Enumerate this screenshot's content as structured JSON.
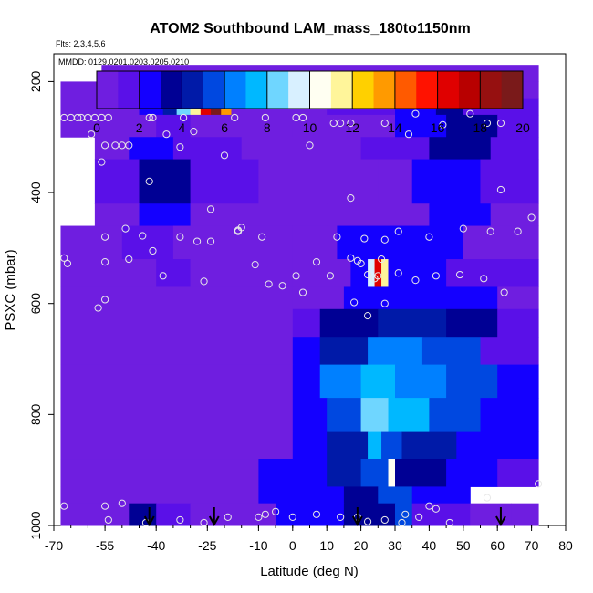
{
  "chart_data": {
    "type": "heatmap",
    "title": "ATOM2 Southbound LAM_mass_180to1150nm",
    "flights_note": "Flts: 2,3,4,5,6",
    "dates_note": "MMDD: 0129,0201,0203,0205,0210",
    "xlabel": "Latitude (deg N)",
    "ylabel": "PSXC (mbar)",
    "xlim": [
      -70,
      80
    ],
    "ylim": [
      1000,
      150
    ],
    "x_ticks": [
      "-70",
      "-55",
      "-40",
      "-25",
      "-10",
      "0",
      "10",
      "20",
      "30",
      "40",
      "50",
      "60",
      "70",
      "80"
    ],
    "y_ticks": [
      "200",
      "400",
      "600",
      "800",
      "1000"
    ],
    "colorbar": {
      "range": [
        0,
        20
      ],
      "ticks": [
        "0",
        "2",
        "4",
        "6",
        "8",
        "10",
        "12",
        "14",
        "16",
        "18",
        "20"
      ],
      "colors": [
        "#6f1ee0",
        "#5a10e8",
        "#1400ff",
        "#000094",
        "#001aa8",
        "#0048e0",
        "#0080ff",
        "#00b8ff",
        "#6fd6ff",
        "#d8f0ff",
        "#fffff2",
        "#fff59a",
        "#ffd000",
        "#ff9a00",
        "#ff5a00",
        "#ff1200",
        "#e00000",
        "#b80000",
        "#961010",
        "#7a1a1a"
      ]
    },
    "rows": [
      {
        "p": [
          170,
          200
        ],
        "lat": [
          -56,
          72
        ],
        "cells": [
          [
            -56,
            72,
            0.3
          ]
        ]
      },
      {
        "p": [
          200,
          230
        ],
        "lat": [
          -68,
          72
        ],
        "cells": [
          [
            -68,
            -20,
            0.3
          ],
          [
            -20,
            10,
            0.6
          ],
          [
            10,
            35,
            0.8
          ],
          [
            35,
            50,
            1.2
          ],
          [
            50,
            72,
            0.5
          ]
        ]
      },
      {
        "p": [
          230,
          260
        ],
        "lat": [
          -68,
          72
        ],
        "cells": [
          [
            -68,
            -45,
            0.3
          ],
          [
            -45,
            -38,
            2.5
          ],
          [
            -38,
            -34,
            4.5
          ],
          [
            -34,
            -30,
            8
          ],
          [
            -30,
            -27,
            11
          ],
          [
            -27,
            -24,
            16
          ],
          [
            -24,
            -21,
            19
          ],
          [
            -21,
            -18,
            13
          ],
          [
            -18,
            10,
            0.4
          ],
          [
            10,
            30,
            1
          ],
          [
            30,
            42,
            2
          ],
          [
            42,
            50,
            3.2
          ],
          [
            50,
            72,
            1.2
          ]
        ]
      },
      {
        "p": [
          260,
          300
        ],
        "lat": [
          -68,
          72
        ],
        "cells": [
          [
            -68,
            -40,
            0.3
          ],
          [
            -40,
            -30,
            1.6
          ],
          [
            -30,
            0,
            0.5
          ],
          [
            0,
            30,
            0.6
          ],
          [
            30,
            45,
            2.4
          ],
          [
            45,
            60,
            3
          ],
          [
            60,
            72,
            1
          ]
        ]
      },
      {
        "p": [
          300,
          340
        ],
        "lat": [
          -58,
          72
        ],
        "cells": [
          [
            -58,
            -48,
            0.4
          ],
          [
            -48,
            -35,
            2.2
          ],
          [
            -35,
            -15,
            1.2
          ],
          [
            -15,
            20,
            0.5
          ],
          [
            20,
            40,
            1.2
          ],
          [
            40,
            58,
            3
          ],
          [
            58,
            72,
            1
          ]
        ]
      },
      {
        "p": [
          340,
          420
        ],
        "lat": [
          -58,
          72
        ],
        "cells": [
          [
            -58,
            -45,
            1
          ],
          [
            -45,
            -30,
            3
          ],
          [
            -30,
            -10,
            1.2
          ],
          [
            -10,
            25,
            0.3
          ],
          [
            25,
            35,
            0.9
          ],
          [
            35,
            55,
            2.9
          ],
          [
            55,
            72,
            1.3
          ]
        ]
      },
      {
        "p": [
          420,
          460
        ],
        "lat": [
          -58,
          72
        ],
        "cells": [
          [
            -58,
            -45,
            0.5
          ],
          [
            -45,
            -30,
            2
          ],
          [
            -30,
            10,
            0.4
          ],
          [
            10,
            40,
            0.4
          ],
          [
            40,
            58,
            2.4
          ],
          [
            58,
            72,
            0.8
          ]
        ]
      },
      {
        "p": [
          460,
          520
        ],
        "lat": [
          -68,
          72
        ],
        "cells": [
          [
            -68,
            -50,
            0.3
          ],
          [
            -50,
            -35,
            1
          ],
          [
            -35,
            0,
            0.3
          ],
          [
            0,
            13,
            0.3
          ],
          [
            13,
            35,
            2.9
          ],
          [
            35,
            50,
            2.5
          ],
          [
            50,
            72,
            0.4
          ]
        ]
      },
      {
        "p": [
          520,
          570
        ],
        "lat": [
          -68,
          72
        ],
        "cells": [
          [
            -68,
            -40,
            0.3
          ],
          [
            -40,
            -30,
            1.5
          ],
          [
            -30,
            0,
            0.4
          ],
          [
            0,
            17,
            0.4
          ],
          [
            17,
            22,
            2.5
          ],
          [
            22,
            24,
            9
          ],
          [
            24,
            26,
            16
          ],
          [
            26,
            28,
            11
          ],
          [
            28,
            30,
            2
          ],
          [
            30,
            45,
            2.8
          ],
          [
            45,
            72,
            1.2
          ]
        ]
      },
      {
        "p": [
          570,
          610
        ],
        "lat": [
          -68,
          72
        ],
        "cells": [
          [
            -68,
            0,
            0.5
          ],
          [
            0,
            15,
            0.6
          ],
          [
            15,
            25,
            2.8
          ],
          [
            25,
            60,
            2
          ],
          [
            60,
            72,
            0.6
          ]
        ]
      },
      {
        "p": [
          610,
          660
        ],
        "lat": [
          -68,
          72
        ],
        "cells": [
          [
            -68,
            0,
            0.6
          ],
          [
            0,
            8,
            1.6
          ],
          [
            8,
            25,
            3.3
          ],
          [
            25,
            45,
            4.4
          ],
          [
            45,
            60,
            3.2
          ],
          [
            60,
            72,
            1.2
          ]
        ]
      },
      {
        "p": [
          660,
          710
        ],
        "lat": [
          -68,
          72
        ],
        "cells": [
          [
            -68,
            0,
            0.7
          ],
          [
            0,
            8,
            2.1
          ],
          [
            8,
            22,
            4.7
          ],
          [
            22,
            38,
            6.2
          ],
          [
            38,
            55,
            5
          ],
          [
            55,
            72,
            1.6
          ]
        ]
      },
      {
        "p": [
          710,
          770
        ],
        "lat": [
          -68,
          72
        ],
        "cells": [
          [
            -68,
            0,
            0.8
          ],
          [
            0,
            8,
            2.8
          ],
          [
            8,
            20,
            6.2
          ],
          [
            20,
            30,
            7.6
          ],
          [
            30,
            45,
            6.6
          ],
          [
            45,
            60,
            5
          ],
          [
            60,
            72,
            2.1
          ]
        ]
      },
      {
        "p": [
          770,
          830
        ],
        "lat": [
          -68,
          72
        ],
        "cells": [
          [
            -68,
            0,
            0.7
          ],
          [
            0,
            10,
            2.8
          ],
          [
            10,
            20,
            5.2
          ],
          [
            20,
            28,
            8.2
          ],
          [
            28,
            40,
            7
          ],
          [
            40,
            55,
            5
          ],
          [
            55,
            72,
            2.3
          ]
        ]
      },
      {
        "p": [
          830,
          880
        ],
        "lat": [
          -68,
          72
        ],
        "cells": [
          [
            -68,
            0,
            0.7
          ],
          [
            0,
            10,
            2.5
          ],
          [
            10,
            22,
            4.8
          ],
          [
            22,
            26,
            7
          ],
          [
            26,
            32,
            5
          ],
          [
            32,
            48,
            4
          ],
          [
            48,
            72,
            2
          ]
        ]
      },
      {
        "p": [
          880,
          930
        ],
        "lat": [
          -68,
          72
        ],
        "cells": [
          [
            -68,
            -10,
            0.7
          ],
          [
            -10,
            10,
            2
          ],
          [
            10,
            20,
            4
          ],
          [
            20,
            28,
            5.5
          ],
          [
            28,
            30,
            10
          ],
          [
            30,
            45,
            3
          ],
          [
            45,
            60,
            2
          ],
          [
            60,
            72,
            1
          ]
        ]
      },
      {
        "p": [
          930,
          960
        ],
        "lat": [
          -68,
          52
        ],
        "cells": [
          [
            -68,
            -10,
            0.6
          ],
          [
            -10,
            15,
            2
          ],
          [
            15,
            25,
            3.5
          ],
          [
            25,
            35,
            5
          ],
          [
            35,
            52,
            2.4
          ]
        ]
      },
      {
        "p": [
          960,
          1000
        ],
        "lat": [
          -68,
          72
        ],
        "cells": [
          [
            -68,
            -48,
            0.5
          ],
          [
            -48,
            -40,
            3
          ],
          [
            -40,
            -30,
            1.5
          ],
          [
            -30,
            -5,
            0.6
          ],
          [
            -5,
            15,
            2.6
          ],
          [
            15,
            30,
            3
          ],
          [
            30,
            35,
            5
          ],
          [
            35,
            52,
            1.2
          ],
          [
            52,
            64,
            0
          ],
          [
            64,
            72,
            0.5
          ]
        ]
      }
    ],
    "samples": [
      [
        -55,
        205
      ],
      [
        -52,
        205
      ],
      [
        -50,
        210
      ],
      [
        -54,
        235
      ],
      [
        -49,
        235
      ],
      [
        -20,
        233
      ],
      [
        -19,
        228
      ],
      [
        -17,
        227
      ],
      [
        -16,
        227
      ],
      [
        63,
        206
      ],
      [
        65,
        206
      ],
      [
        -67,
        265
      ],
      [
        -65,
        265
      ],
      [
        -63,
        265
      ],
      [
        -62,
        265
      ],
      [
        -60,
        265
      ],
      [
        -58,
        265
      ],
      [
        -56,
        265
      ],
      [
        -54,
        265
      ],
      [
        -42,
        265
      ],
      [
        -41,
        265
      ],
      [
        -32,
        265
      ],
      [
        -29,
        290
      ],
      [
        -17,
        265
      ],
      [
        -8,
        265
      ],
      [
        1,
        265
      ],
      [
        3,
        265
      ],
      [
        12,
        275
      ],
      [
        14,
        275
      ],
      [
        17,
        275
      ],
      [
        27,
        275
      ],
      [
        36,
        258
      ],
      [
        44,
        278
      ],
      [
        52,
        258
      ],
      [
        57,
        275
      ],
      [
        61,
        275
      ],
      [
        -59,
        295
      ],
      [
        -55,
        315
      ],
      [
        -52,
        315
      ],
      [
        -50,
        315
      ],
      [
        -48,
        315
      ],
      [
        -37,
        295
      ],
      [
        -33,
        318
      ],
      [
        -56,
        345
      ],
      [
        -20,
        333
      ],
      [
        5,
        315
      ],
      [
        34,
        295
      ],
      [
        -42,
        380
      ],
      [
        -24,
        430
      ],
      [
        17,
        410
      ],
      [
        61,
        395
      ],
      [
        70,
        445
      ],
      [
        -55,
        480
      ],
      [
        -49,
        465
      ],
      [
        -44,
        478
      ],
      [
        -33,
        480
      ],
      [
        -28,
        488
      ],
      [
        -24,
        488
      ],
      [
        -15,
        463
      ],
      [
        -16,
        470
      ],
      [
        -16,
        468
      ],
      [
        -9,
        480
      ],
      [
        13,
        480
      ],
      [
        21,
        483
      ],
      [
        27,
        485
      ],
      [
        31,
        470
      ],
      [
        40,
        480
      ],
      [
        50,
        465
      ],
      [
        58,
        470
      ],
      [
        66,
        470
      ],
      [
        -67,
        518
      ],
      [
        -66,
        528
      ],
      [
        -55,
        525
      ],
      [
        -48,
        520
      ],
      [
        -41,
        505
      ],
      [
        -11,
        530
      ],
      [
        1,
        550
      ],
      [
        7,
        525
      ],
      [
        17,
        518
      ],
      [
        19,
        523
      ],
      [
        20,
        528
      ],
      [
        22,
        548
      ],
      [
        25,
        550
      ],
      [
        24,
        555
      ],
      [
        26,
        520
      ],
      [
        31,
        545
      ],
      [
        36,
        558
      ],
      [
        42,
        550
      ],
      [
        49,
        548
      ],
      [
        56,
        555
      ],
      [
        62,
        580
      ],
      [
        -38,
        550
      ],
      [
        -26,
        560
      ],
      [
        3,
        580
      ],
      [
        11,
        550
      ],
      [
        27,
        600
      ],
      [
        18,
        598
      ],
      [
        -57,
        608
      ],
      [
        -55,
        593
      ],
      [
        -7,
        565
      ],
      [
        -3,
        568
      ],
      [
        22,
        622
      ],
      [
        -55,
        965
      ],
      [
        -50,
        960
      ],
      [
        -67,
        965
      ],
      [
        -54,
        990
      ],
      [
        -43,
        995
      ],
      [
        -33,
        990
      ],
      [
        -26,
        995
      ],
      [
        -19,
        985
      ],
      [
        -10,
        985
      ],
      [
        -8,
        980
      ],
      [
        -5,
        975
      ],
      [
        0,
        985
      ],
      [
        7,
        980
      ],
      [
        14,
        985
      ],
      [
        19,
        985
      ],
      [
        22,
        993
      ],
      [
        27,
        990
      ],
      [
        33,
        980
      ],
      [
        37,
        985
      ],
      [
        46,
        995
      ],
      [
        57,
        950
      ],
      [
        72,
        925
      ],
      [
        32,
        995
      ],
      [
        40,
        965
      ],
      [
        42,
        970
      ]
    ],
    "arrows": [
      -42,
      -23,
      19,
      61
    ]
  }
}
